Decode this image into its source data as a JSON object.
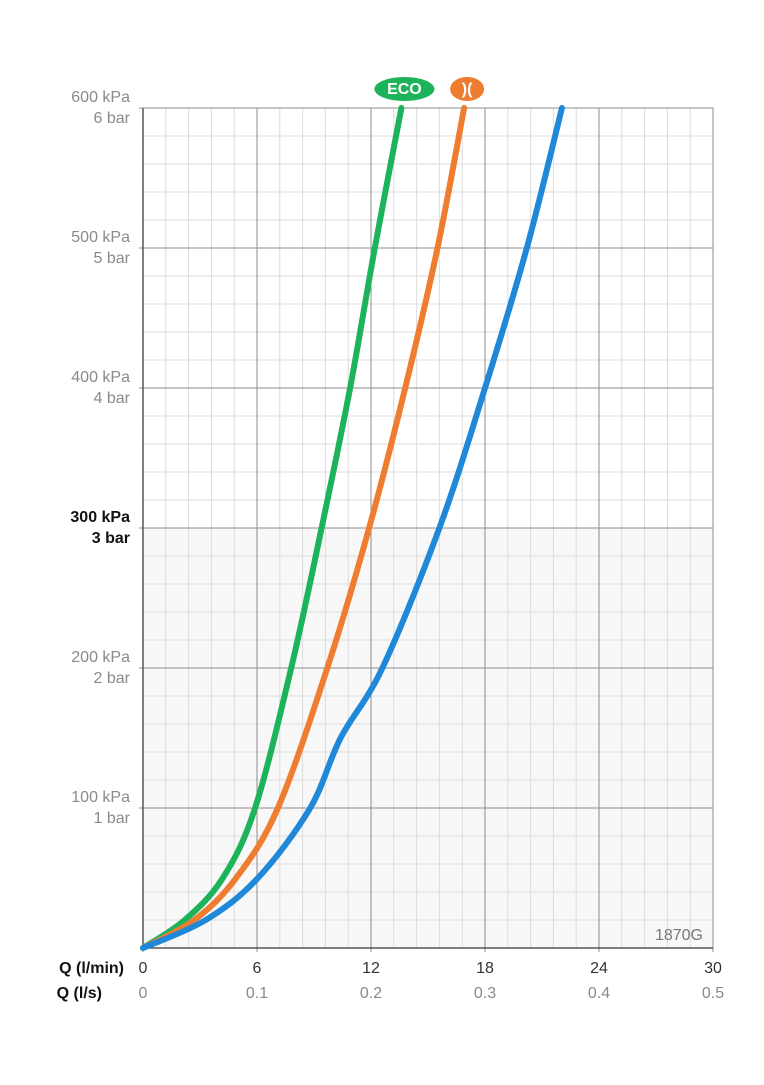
{
  "chart_data": {
    "type": "line",
    "xlabel": "Q (l/min)",
    "x2label": "Q (l/s)",
    "xlim": [
      0,
      30
    ],
    "xticks": [
      0,
      6,
      12,
      18,
      24,
      30
    ],
    "x2lim": [
      0,
      0.5
    ],
    "x2ticks": [
      0,
      0.1,
      0.2,
      0.3,
      0.4,
      0.5
    ],
    "ylim": [
      0,
      600
    ],
    "yticks": [
      {
        "value": 100,
        "label": "100 kPa"
      },
      {
        "value": 200,
        "label": "200 kPa"
      },
      {
        "value": 300,
        "label": "300 kPa"
      },
      {
        "value": 400,
        "label": "400 kPa"
      },
      {
        "value": 500,
        "label": "500 kPa"
      },
      {
        "value": 600,
        "label": "600 kPa"
      }
    ],
    "y2lim": [
      0,
      6
    ],
    "y2ticks": [
      {
        "value": 1,
        "label": "1 bar"
      },
      {
        "value": 2,
        "label": "2 bar"
      },
      {
        "value": 3,
        "label": "3 bar"
      },
      {
        "value": 4,
        "label": "4 bar"
      },
      {
        "value": 5,
        "label": "5 bar"
      },
      {
        "value": 6,
        "label": "6 bar"
      }
    ],
    "highlight_y": 300,
    "grid": true,
    "annotation": "1870G",
    "series": [
      {
        "name": "ECO",
        "color": "#1db35a",
        "x": [
          0,
          2.2,
          4.2,
          5.9,
          7.8,
          9.4,
          10.9,
          12.2,
          13.6
        ],
        "values": [
          0,
          20,
          50,
          100,
          200,
          300,
          400,
          500,
          600
        ]
      },
      {
        "name": ")(",
        "color": "#ef7d31",
        "x": [
          0,
          2.7,
          4.9,
          7.1,
          9.7,
          11.9,
          13.8,
          15.5,
          16.9
        ],
        "values": [
          0,
          20,
          50,
          100,
          200,
          300,
          400,
          500,
          600
        ]
      },
      {
        "color": "#1f88d8",
        "x": [
          0,
          3.3,
          6.05,
          8.8,
          10.4,
          12.6,
          15.6,
          18.0,
          20.2,
          22.05
        ],
        "values": [
          0,
          20,
          50,
          100,
          150,
          200,
          300,
          400,
          500,
          600
        ]
      }
    ]
  }
}
